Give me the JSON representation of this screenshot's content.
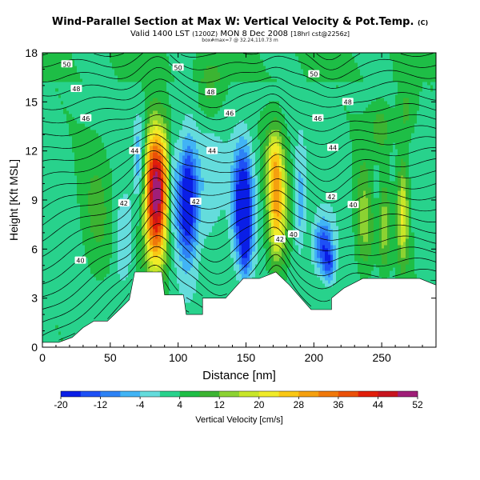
{
  "header": {
    "title": "Wind-Parallel Section at Max W: Vertical Velocity & Pot.Temp.",
    "title_mark": "(C)",
    "valid_prefix": "Valid 1400 LST",
    "valid_utc": "(1200Z)",
    "valid_date": "MON 8 Dec 2008",
    "valid_suffix": "[18hrl cst@2256z]",
    "subline": "box#max=7 @ 32.24,110.73 m"
  },
  "chart_data": {
    "type": "heatmap",
    "xlabel": "Distance [nm]",
    "ylabel": "Height [Kft MSL]",
    "xlim": [
      0,
      290
    ],
    "ylim": [
      0,
      18
    ],
    "x_ticks": [
      0,
      50,
      100,
      150,
      200,
      250
    ],
    "y_ticks": [
      0,
      3,
      6,
      9,
      12,
      15,
      18
    ],
    "colorbar": {
      "label": "Vertical Velocity [cm/s]",
      "tick_labels": [
        -20,
        -12,
        -4,
        4,
        12,
        20,
        28,
        36,
        44,
        52
      ],
      "levels": [
        -20,
        -16,
        -12,
        -8,
        -4,
        0,
        4,
        8,
        12,
        16,
        20,
        24,
        28,
        32,
        36,
        40,
        44,
        48,
        52
      ],
      "colors": [
        "#0a1ee6",
        "#1e50f5",
        "#2d82f5",
        "#41b4f5",
        "#64dcdc",
        "#28d28c",
        "#1ebe46",
        "#3cb432",
        "#8cd232",
        "#c8e628",
        "#f0eb28",
        "#fac814",
        "#f5a00f",
        "#f0780a",
        "#eb5008",
        "#e11e0a",
        "#c8141e",
        "#a01e78"
      ]
    },
    "theta_contour_labels": [
      {
        "value": "50",
        "x": 18,
        "y": 17.3
      },
      {
        "value": "50",
        "x": 100,
        "y": 17.1
      },
      {
        "value": "50",
        "x": 200,
        "y": 16.7
      },
      {
        "value": "48",
        "x": 25,
        "y": 15.8
      },
      {
        "value": "48",
        "x": 124,
        "y": 15.6
      },
      {
        "value": "48",
        "x": 225,
        "y": 15.0
      },
      {
        "value": "46",
        "x": 32,
        "y": 14.0
      },
      {
        "value": "46",
        "x": 138,
        "y": 14.3
      },
      {
        "value": "46",
        "x": 203,
        "y": 14.0
      },
      {
        "value": "44",
        "x": 68,
        "y": 12.0
      },
      {
        "value": "44",
        "x": 125,
        "y": 12.0
      },
      {
        "value": "44",
        "x": 214,
        "y": 12.2
      },
      {
        "value": "42",
        "x": 60,
        "y": 8.8
      },
      {
        "value": "42",
        "x": 113,
        "y": 8.9
      },
      {
        "value": "42",
        "x": 213,
        "y": 9.2
      },
      {
        "value": "40",
        "x": 28,
        "y": 5.3
      },
      {
        "value": "40",
        "x": 229,
        "y": 8.7
      },
      {
        "value": "42",
        "x": 175,
        "y": 6.6
      },
      {
        "value": "40",
        "x": 185,
        "y": 6.9
      }
    ]
  }
}
